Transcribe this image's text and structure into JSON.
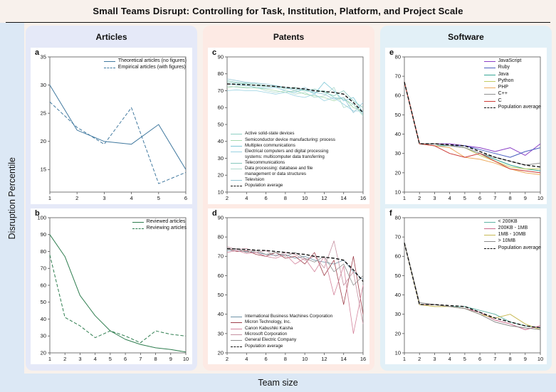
{
  "title": "Small Teams Disrupt: Controlling for Task, Institution, Platform, and Project Scale",
  "ylabel": "Disruption Percentile",
  "xlabel": "Team size",
  "columns": [
    {
      "label": "Articles"
    },
    {
      "label": "Patents"
    },
    {
      "label": "Software"
    }
  ],
  "chart_data": [
    {
      "panel": "a",
      "type": "line",
      "title": "Articles: theoretical vs empirical",
      "x": [
        1,
        2,
        3,
        4,
        5,
        6
      ],
      "xticks": [
        1,
        2,
        3,
        4,
        5,
        6
      ],
      "xlim": [
        1,
        6
      ],
      "ylim": [
        11,
        35
      ],
      "yticks": [
        15,
        20,
        25,
        30,
        35
      ],
      "legend_pos": "top-right",
      "legend_small": false,
      "series": [
        {
          "name": "Theoretical articles (no figures)",
          "color": "#41799f",
          "dash": false,
          "width": 1,
          "values": [
            30,
            22,
            20,
            19.5,
            23,
            15
          ]
        },
        {
          "name": "Empirical articles (with figures)",
          "color": "#41799f",
          "dash": true,
          "width": 1,
          "values": [
            27,
            22.5,
            19.5,
            26,
            12.5,
            14.5
          ]
        }
      ]
    },
    {
      "panel": "b",
      "type": "line",
      "title": "Articles: reviewed vs reviewing",
      "x": [
        1,
        2,
        3,
        4,
        5,
        6,
        7,
        8,
        9,
        10
      ],
      "xticks": [
        1,
        2,
        3,
        4,
        5,
        6,
        7,
        8,
        9,
        10
      ],
      "xlim": [
        1,
        10
      ],
      "ylim": [
        20,
        100
      ],
      "yticks": [
        20,
        30,
        40,
        50,
        60,
        70,
        80,
        90,
        100
      ],
      "legend_pos": "top-right",
      "legend_small": false,
      "series": [
        {
          "name": "Reviewed articles",
          "color": "#2e7d4f",
          "dash": false,
          "width": 1,
          "values": [
            90,
            77,
            54,
            42,
            33,
            28,
            25,
            23,
            22,
            20.5
          ]
        },
        {
          "name": "Reviewing articles",
          "color": "#2e7d4f",
          "dash": true,
          "width": 1,
          "values": [
            78,
            41,
            36,
            29,
            33,
            30,
            26,
            33,
            31,
            30
          ]
        }
      ]
    },
    {
      "panel": "c",
      "type": "line",
      "title": "Patents by technology class",
      "x": [
        2,
        3,
        4,
        5,
        6,
        7,
        8,
        9,
        10,
        11,
        12,
        13,
        14,
        15,
        16
      ],
      "xticks": [
        2,
        4,
        6,
        8,
        10,
        12,
        14,
        16
      ],
      "xlim": [
        2,
        16
      ],
      "ylim": [
        10,
        90
      ],
      "yticks": [
        10,
        20,
        30,
        40,
        50,
        60,
        70,
        80,
        90
      ],
      "legend_pos": "bottom-left",
      "legend_small": true,
      "series": [
        {
          "name": "Active solid-state devices",
          "color": "#8fcfc4",
          "dash": false,
          "width": 0.8,
          "values": [
            76,
            75,
            74.5,
            74,
            73,
            72.5,
            72,
            71,
            70,
            69,
            70,
            66,
            65,
            62,
            56
          ]
        },
        {
          "name": "Semiconductor device manufacturing: process",
          "color": "#a6d9ae",
          "dash": false,
          "width": 0.8,
          "values": [
            72,
            72.5,
            72,
            71.5,
            71,
            70,
            69,
            70,
            68,
            67,
            66,
            64,
            66,
            60,
            58
          ]
        },
        {
          "name": "Multiplex communications",
          "color": "#7cc6d6",
          "dash": false,
          "width": 0.8,
          "values": [
            74,
            73.5,
            73,
            72,
            71.5,
            72,
            70,
            69,
            71,
            68,
            75,
            70,
            64,
            66,
            57
          ]
        },
        {
          "name": "Electrical computers and digital processing systems: multicomputer data transferring",
          "color": "#9ad2e2",
          "dash": false,
          "width": 0.8,
          "values": [
            70,
            70.5,
            70,
            70,
            69,
            68,
            69,
            67,
            66,
            68,
            64,
            66,
            62,
            58,
            58
          ]
        },
        {
          "name": "Telecommunications",
          "color": "#86c8bc",
          "dash": false,
          "width": 0.8,
          "values": [
            75,
            74.5,
            74,
            73,
            72.5,
            73,
            71,
            72,
            70,
            71,
            69,
            67,
            70,
            64,
            60
          ]
        },
        {
          "name": "Data processing: database and file management or data structures",
          "color": "#aedacd",
          "dash": false,
          "width": 0.8,
          "values": [
            73,
            72,
            71.5,
            72,
            70,
            69,
            70,
            68,
            69,
            66,
            67,
            72,
            60,
            62,
            55
          ]
        },
        {
          "name": "Television",
          "color": "#93c4d4",
          "dash": false,
          "width": 0.8,
          "values": [
            77,
            76,
            75,
            74.5,
            74,
            73,
            72,
            70,
            72,
            69,
            68,
            65,
            66,
            57,
            63
          ]
        },
        {
          "name": "Population average",
          "color": "#111111",
          "dash": true,
          "width": 1.4,
          "values": [
            74,
            73.8,
            73.5,
            73.2,
            73,
            72.5,
            72,
            71.5,
            71,
            70,
            69.5,
            69,
            68,
            63,
            57
          ]
        }
      ]
    },
    {
      "panel": "d",
      "type": "line",
      "title": "Patents by assignee company",
      "x": [
        2,
        3,
        4,
        5,
        6,
        7,
        8,
        9,
        10,
        11,
        12,
        13,
        14,
        15,
        16
      ],
      "xticks": [
        2,
        4,
        6,
        8,
        10,
        12,
        14,
        16
      ],
      "xlim": [
        2,
        16
      ],
      "ylim": [
        20,
        90
      ],
      "yticks": [
        20,
        30,
        40,
        50,
        60,
        70,
        80,
        90
      ],
      "legend_pos": "bottom-left",
      "legend_small": true,
      "series": [
        {
          "name": "International Business Machines Corporation",
          "color": "#6f94a8",
          "dash": false,
          "width": 0.8,
          "values": [
            73,
            73,
            72.5,
            72,
            71,
            70.5,
            71,
            69,
            70,
            68,
            67,
            66,
            68,
            62,
            58
          ]
        },
        {
          "name": "Micron Technology, Inc.",
          "color": "#9e3f4a",
          "dash": false,
          "width": 0.8,
          "values": [
            74,
            72.5,
            73,
            71,
            70,
            72,
            69,
            70,
            66,
            72,
            60,
            68,
            45,
            70,
            40
          ]
        },
        {
          "name": "Canon Kabushiki Kaisha",
          "color": "#d4849c",
          "dash": false,
          "width": 0.8,
          "values": [
            72,
            73,
            71.5,
            72,
            70,
            69,
            71,
            66,
            69,
            62,
            70,
            50,
            65,
            30,
            55
          ]
        },
        {
          "name": "Microsoft Corporation",
          "color": "#c590a0",
          "dash": false,
          "width": 0.8,
          "values": [
            75,
            73.5,
            74,
            72,
            73,
            70,
            72,
            71,
            68,
            70,
            64,
            78,
            55,
            62,
            35
          ]
        },
        {
          "name": "General Electric Company",
          "color": "#8f8f8f",
          "dash": false,
          "width": 0.8,
          "values": [
            73.5,
            74,
            72,
            73,
            71,
            72,
            70,
            72,
            69,
            67,
            70,
            62,
            66,
            55,
            60
          ]
        },
        {
          "name": "Population average",
          "color": "#111111",
          "dash": true,
          "width": 1.4,
          "values": [
            74,
            73.8,
            73.5,
            73.2,
            73,
            72.5,
            72,
            71.5,
            71,
            70,
            69.5,
            69,
            68,
            63,
            57
          ]
        }
      ]
    },
    {
      "panel": "e",
      "type": "line",
      "title": "Software by programming language",
      "x": [
        1,
        2,
        3,
        4,
        5,
        6,
        7,
        8,
        9,
        10
      ],
      "xticks": [
        1,
        2,
        3,
        4,
        5,
        6,
        7,
        8,
        9,
        10
      ],
      "xlim": [
        1,
        10
      ],
      "ylim": [
        10,
        80
      ],
      "yticks": [
        10,
        20,
        30,
        40,
        50,
        60,
        70,
        80
      ],
      "legend_pos": "top-right",
      "legend_small": false,
      "series": [
        {
          "name": "JavaScript",
          "color": "#8a3fc6",
          "dash": false,
          "width": 1,
          "values": [
            67,
            35,
            35,
            35,
            34,
            33,
            31,
            33,
            29,
            35
          ]
        },
        {
          "name": "Ruby",
          "color": "#4a5fc0",
          "dash": false,
          "width": 1,
          "values": [
            67,
            35,
            35,
            34,
            34,
            32,
            30,
            28,
            31,
            33
          ]
        },
        {
          "name": "Java",
          "color": "#36a695",
          "dash": false,
          "width": 1,
          "values": [
            67,
            35,
            34,
            34,
            33,
            30,
            27,
            24,
            22,
            21
          ]
        },
        {
          "name": "Python",
          "color": "#c3cc63",
          "dash": false,
          "width": 1,
          "values": [
            67,
            35,
            35,
            34,
            33,
            29,
            26,
            23,
            22,
            22
          ]
        },
        {
          "name": "PHP",
          "color": "#edaa5d",
          "dash": false,
          "width": 1,
          "values": [
            67,
            35,
            34,
            33,
            28,
            27,
            25,
            22,
            20,
            19
          ]
        },
        {
          "name": "C++",
          "color": "#8f8f8f",
          "dash": false,
          "width": 1,
          "values": [
            67,
            35,
            35,
            34,
            33,
            30,
            28,
            26,
            24,
            25
          ]
        },
        {
          "name": "C",
          "color": "#cc3a35",
          "dash": false,
          "width": 1,
          "values": [
            67,
            35,
            34,
            30,
            28,
            30,
            26,
            22,
            21,
            20
          ]
        },
        {
          "name": "Population average",
          "color": "#111111",
          "dash": true,
          "width": 1.4,
          "values": [
            67,
            35,
            35,
            34.5,
            34,
            31,
            28,
            26,
            24,
            23
          ]
        }
      ]
    },
    {
      "panel": "f",
      "type": "line",
      "title": "Software by project scale",
      "x": [
        1,
        2,
        3,
        4,
        5,
        6,
        7,
        8,
        9,
        10
      ],
      "xticks": [
        1,
        2,
        3,
        4,
        5,
        6,
        7,
        8,
        9,
        10
      ],
      "xlim": [
        1,
        10
      ],
      "ylim": [
        10,
        80
      ],
      "yticks": [
        10,
        20,
        30,
        40,
        50,
        60,
        70,
        80
      ],
      "legend_pos": "top-right",
      "legend_small": false,
      "series": [
        {
          "name": "< 200KB",
          "color": "#5fb3a4",
          "dash": false,
          "width": 1,
          "values": [
            67,
            35,
            35,
            34,
            34,
            32,
            30,
            26,
            24,
            23
          ]
        },
        {
          "name": "200KB - 1MB",
          "color": "#c96a8a",
          "dash": false,
          "width": 1,
          "values": [
            67,
            35,
            35,
            34,
            33,
            31,
            27,
            25,
            22,
            24
          ]
        },
        {
          "name": "1MB - 10MB",
          "color": "#c9ba55",
          "dash": false,
          "width": 1,
          "values": [
            67,
            35,
            34,
            34,
            33,
            30,
            28,
            30,
            25,
            22
          ]
        },
        {
          "name": "> 10MB",
          "color": "#8c8c8c",
          "dash": false,
          "width": 1,
          "values": [
            67,
            36,
            35,
            34,
            33,
            30,
            26,
            24,
            23,
            22
          ]
        },
        {
          "name": "Population average",
          "color": "#111111",
          "dash": true,
          "width": 1.4,
          "values": [
            67,
            35,
            35,
            34.5,
            34,
            31,
            28,
            26,
            24,
            23
          ]
        }
      ]
    }
  ]
}
